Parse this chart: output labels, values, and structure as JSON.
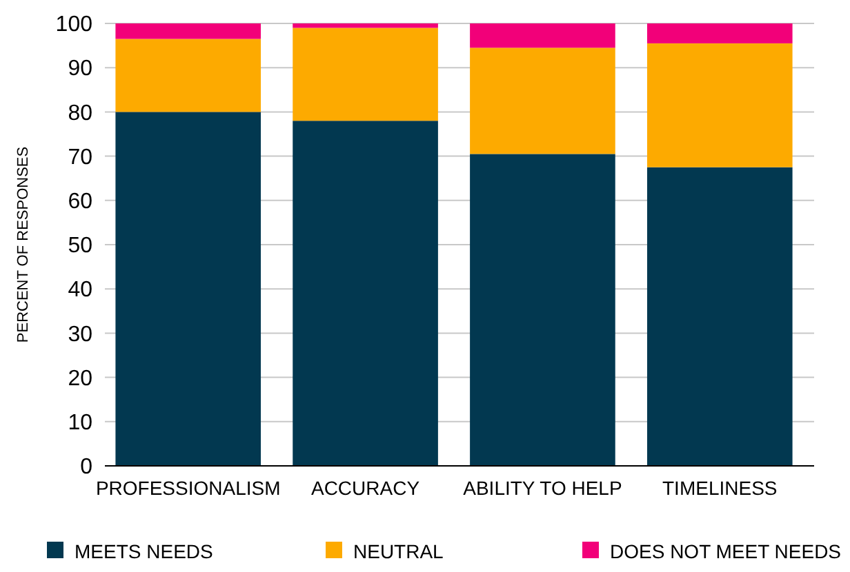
{
  "chart_data": {
    "type": "bar",
    "stacked": true,
    "ylabel": "PERCENT OF RESPONSES",
    "categories": [
      "PROFESSIONALISM",
      "ACCURACY",
      "ABILITY TO HELP",
      "TIMELINESS"
    ],
    "series": [
      {
        "name": "MEETS NEEDS",
        "color": "#023850",
        "values": [
          80,
          78,
          70.5,
          67.5
        ]
      },
      {
        "name": "NEUTRAL",
        "color": "#fdaa00",
        "values": [
          16.5,
          21,
          24,
          28
        ]
      },
      {
        "name": "DOES NOT MEET NEEDS",
        "color": "#f20079",
        "values": [
          3.5,
          1,
          5.5,
          4.5
        ]
      }
    ],
    "ylim": [
      0,
      100
    ],
    "yticks": [
      0,
      10,
      20,
      30,
      40,
      50,
      60,
      70,
      80,
      90,
      100
    ],
    "grid": "y",
    "legend": "bottom"
  }
}
